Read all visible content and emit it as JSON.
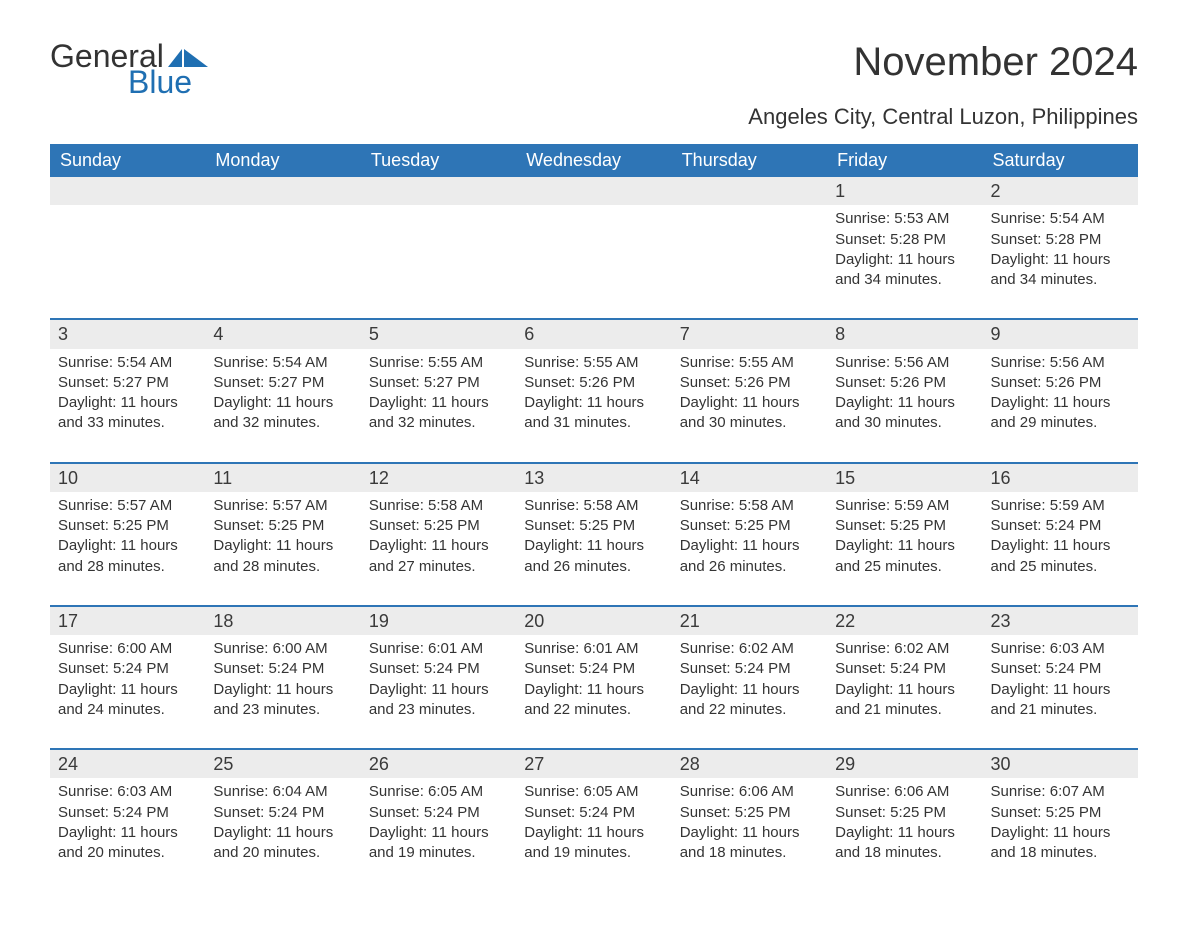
{
  "logo": {
    "word1": "General",
    "word2": "Blue",
    "shape_color": "#1f6fb2"
  },
  "title": "November 2024",
  "location": "Angeles City, Central Luzon, Philippines",
  "header_bg": "#2e75b6",
  "header_fg": "#ffffff",
  "daynum_bg": "#ececec",
  "row_border_color": "#2e75b6",
  "text_color": "#333333",
  "page_bg": "#ffffff",
  "day_labels": [
    "Sunday",
    "Monday",
    "Tuesday",
    "Wednesday",
    "Thursday",
    "Friday",
    "Saturday"
  ],
  "weeks": [
    [
      null,
      null,
      null,
      null,
      null,
      {
        "n": "1",
        "sr": "Sunrise: 5:53 AM",
        "ss": "Sunset: 5:28 PM",
        "dl": "Daylight: 11 hours and 34 minutes."
      },
      {
        "n": "2",
        "sr": "Sunrise: 5:54 AM",
        "ss": "Sunset: 5:28 PM",
        "dl": "Daylight: 11 hours and 34 minutes."
      }
    ],
    [
      {
        "n": "3",
        "sr": "Sunrise: 5:54 AM",
        "ss": "Sunset: 5:27 PM",
        "dl": "Daylight: 11 hours and 33 minutes."
      },
      {
        "n": "4",
        "sr": "Sunrise: 5:54 AM",
        "ss": "Sunset: 5:27 PM",
        "dl": "Daylight: 11 hours and 32 minutes."
      },
      {
        "n": "5",
        "sr": "Sunrise: 5:55 AM",
        "ss": "Sunset: 5:27 PM",
        "dl": "Daylight: 11 hours and 32 minutes."
      },
      {
        "n": "6",
        "sr": "Sunrise: 5:55 AM",
        "ss": "Sunset: 5:26 PM",
        "dl": "Daylight: 11 hours and 31 minutes."
      },
      {
        "n": "7",
        "sr": "Sunrise: 5:55 AM",
        "ss": "Sunset: 5:26 PM",
        "dl": "Daylight: 11 hours and 30 minutes."
      },
      {
        "n": "8",
        "sr": "Sunrise: 5:56 AM",
        "ss": "Sunset: 5:26 PM",
        "dl": "Daylight: 11 hours and 30 minutes."
      },
      {
        "n": "9",
        "sr": "Sunrise: 5:56 AM",
        "ss": "Sunset: 5:26 PM",
        "dl": "Daylight: 11 hours and 29 minutes."
      }
    ],
    [
      {
        "n": "10",
        "sr": "Sunrise: 5:57 AM",
        "ss": "Sunset: 5:25 PM",
        "dl": "Daylight: 11 hours and 28 minutes."
      },
      {
        "n": "11",
        "sr": "Sunrise: 5:57 AM",
        "ss": "Sunset: 5:25 PM",
        "dl": "Daylight: 11 hours and 28 minutes."
      },
      {
        "n": "12",
        "sr": "Sunrise: 5:58 AM",
        "ss": "Sunset: 5:25 PM",
        "dl": "Daylight: 11 hours and 27 minutes."
      },
      {
        "n": "13",
        "sr": "Sunrise: 5:58 AM",
        "ss": "Sunset: 5:25 PM",
        "dl": "Daylight: 11 hours and 26 minutes."
      },
      {
        "n": "14",
        "sr": "Sunrise: 5:58 AM",
        "ss": "Sunset: 5:25 PM",
        "dl": "Daylight: 11 hours and 26 minutes."
      },
      {
        "n": "15",
        "sr": "Sunrise: 5:59 AM",
        "ss": "Sunset: 5:25 PM",
        "dl": "Daylight: 11 hours and 25 minutes."
      },
      {
        "n": "16",
        "sr": "Sunrise: 5:59 AM",
        "ss": "Sunset: 5:24 PM",
        "dl": "Daylight: 11 hours and 25 minutes."
      }
    ],
    [
      {
        "n": "17",
        "sr": "Sunrise: 6:00 AM",
        "ss": "Sunset: 5:24 PM",
        "dl": "Daylight: 11 hours and 24 minutes."
      },
      {
        "n": "18",
        "sr": "Sunrise: 6:00 AM",
        "ss": "Sunset: 5:24 PM",
        "dl": "Daylight: 11 hours and 23 minutes."
      },
      {
        "n": "19",
        "sr": "Sunrise: 6:01 AM",
        "ss": "Sunset: 5:24 PM",
        "dl": "Daylight: 11 hours and 23 minutes."
      },
      {
        "n": "20",
        "sr": "Sunrise: 6:01 AM",
        "ss": "Sunset: 5:24 PM",
        "dl": "Daylight: 11 hours and 22 minutes."
      },
      {
        "n": "21",
        "sr": "Sunrise: 6:02 AM",
        "ss": "Sunset: 5:24 PM",
        "dl": "Daylight: 11 hours and 22 minutes."
      },
      {
        "n": "22",
        "sr": "Sunrise: 6:02 AM",
        "ss": "Sunset: 5:24 PM",
        "dl": "Daylight: 11 hours and 21 minutes."
      },
      {
        "n": "23",
        "sr": "Sunrise: 6:03 AM",
        "ss": "Sunset: 5:24 PM",
        "dl": "Daylight: 11 hours and 21 minutes."
      }
    ],
    [
      {
        "n": "24",
        "sr": "Sunrise: 6:03 AM",
        "ss": "Sunset: 5:24 PM",
        "dl": "Daylight: 11 hours and 20 minutes."
      },
      {
        "n": "25",
        "sr": "Sunrise: 6:04 AM",
        "ss": "Sunset: 5:24 PM",
        "dl": "Daylight: 11 hours and 20 minutes."
      },
      {
        "n": "26",
        "sr": "Sunrise: 6:05 AM",
        "ss": "Sunset: 5:24 PM",
        "dl": "Daylight: 11 hours and 19 minutes."
      },
      {
        "n": "27",
        "sr": "Sunrise: 6:05 AM",
        "ss": "Sunset: 5:24 PM",
        "dl": "Daylight: 11 hours and 19 minutes."
      },
      {
        "n": "28",
        "sr": "Sunrise: 6:06 AM",
        "ss": "Sunset: 5:25 PM",
        "dl": "Daylight: 11 hours and 18 minutes."
      },
      {
        "n": "29",
        "sr": "Sunrise: 6:06 AM",
        "ss": "Sunset: 5:25 PM",
        "dl": "Daylight: 11 hours and 18 minutes."
      },
      {
        "n": "30",
        "sr": "Sunrise: 6:07 AM",
        "ss": "Sunset: 5:25 PM",
        "dl": "Daylight: 11 hours and 18 minutes."
      }
    ]
  ]
}
